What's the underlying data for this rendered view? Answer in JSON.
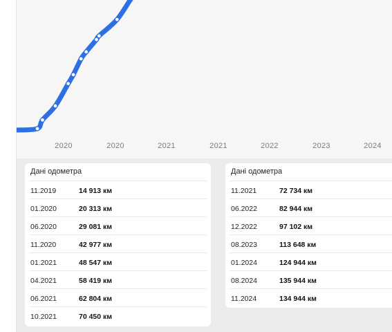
{
  "colors": {
    "line": "#2f6fe4",
    "point_fill": "#ffffff",
    "panel_bg": "#f6f6f7",
    "page_bg": "#ececed"
  },
  "chart_data": {
    "type": "line",
    "x_tick_labels": [
      "2020",
      "2020",
      "2021",
      "2021",
      "2022",
      "2023",
      "2024"
    ],
    "series": [
      {
        "x": [
          "11.2019",
          "01.2020",
          "06.2020",
          "11.2020",
          "01.2021",
          "04.2021",
          "06.2021",
          "10.2021",
          "11.2021",
          "06.2022",
          "12.2022",
          "08.2023"
        ],
        "values": [
          14913,
          20313,
          29081,
          42977,
          48547,
          58419,
          62804,
          70450,
          72734,
          82944,
          97102,
          113648
        ]
      }
    ],
    "unit": "км",
    "grid": false
  },
  "odometer_left": {
    "title": "Дані одометра",
    "rows": [
      {
        "date": "11.2019",
        "km": "14 913 км"
      },
      {
        "date": "01.2020",
        "km": "20 313 км"
      },
      {
        "date": "06.2020",
        "km": "29 081 км"
      },
      {
        "date": "11.2020",
        "km": "42 977 км"
      },
      {
        "date": "01.2021",
        "km": "48 547 км"
      },
      {
        "date": "04.2021",
        "km": "58 419 км"
      },
      {
        "date": "06.2021",
        "km": "62 804 км"
      },
      {
        "date": "10.2021",
        "km": "70 450 км"
      }
    ]
  },
  "odometer_right": {
    "title": "Дані одометра",
    "rows": [
      {
        "date": "11.2021",
        "km": "72 734 км"
      },
      {
        "date": "06.2022",
        "km": "82 944 км"
      },
      {
        "date": "12.2022",
        "km": "97 102 км"
      },
      {
        "date": "08.2023",
        "km": "113 648 км"
      },
      {
        "date": "01.2024",
        "km": "124 944 км"
      },
      {
        "date": "08.2024",
        "km": "135 944 км"
      },
      {
        "date": "11.2024",
        "km": "134 944 км"
      }
    ]
  }
}
